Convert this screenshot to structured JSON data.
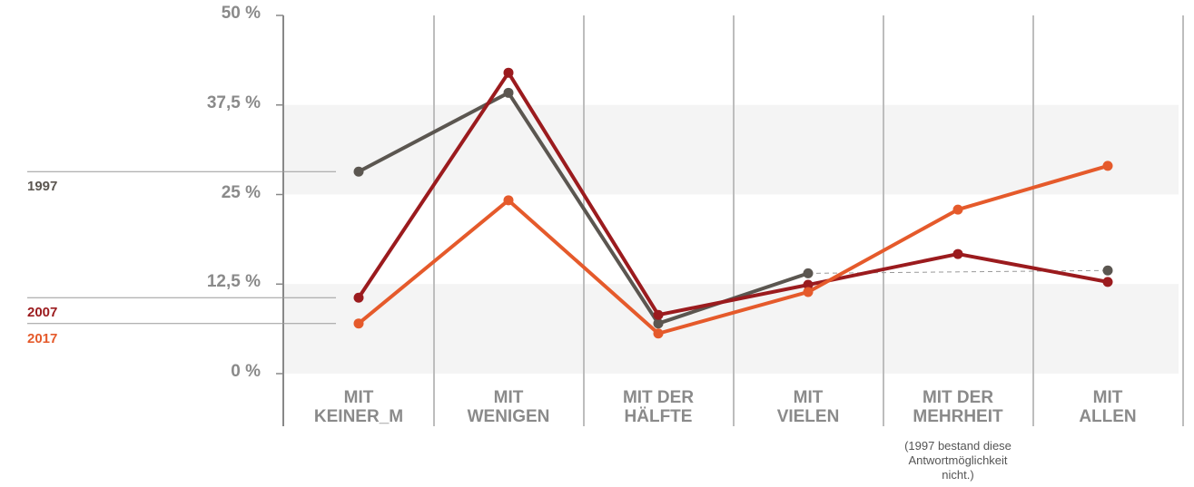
{
  "chart_data": {
    "type": "line",
    "categories": [
      "MIT\nKEINER_M",
      "MIT\nWENIGEN",
      "MIT DER\nHÄLFTE",
      "MIT\nVIELEN",
      "MIT DER\nMEHRHEIT",
      "MIT\nALLEN"
    ],
    "series": [
      {
        "name": "1997",
        "color": "#5b5650",
        "values": [
          28.2,
          39.2,
          7.0,
          14.0,
          null,
          14.4
        ]
      },
      {
        "name": "2007",
        "color": "#9b1b1e",
        "values": [
          10.6,
          42.0,
          8.2,
          12.4,
          16.7,
          12.8
        ]
      },
      {
        "name": "2017",
        "color": "#e55a2b",
        "values": [
          7.0,
          24.2,
          5.6,
          11.4,
          22.9,
          29.0
        ]
      }
    ],
    "ylim": [
      0,
      50
    ],
    "yticks": [
      {
        "value": 0,
        "label": "0 %"
      },
      {
        "value": 12.5,
        "label": "12,5 %"
      },
      {
        "value": 25,
        "label": "25 %"
      },
      {
        "value": 37.5,
        "label": "37,5 %"
      },
      {
        "value": 50,
        "label": "50 %"
      }
    ],
    "annotation": "(1997 bestand diese\nAntwortmöglichkeit\nnicht.)"
  }
}
